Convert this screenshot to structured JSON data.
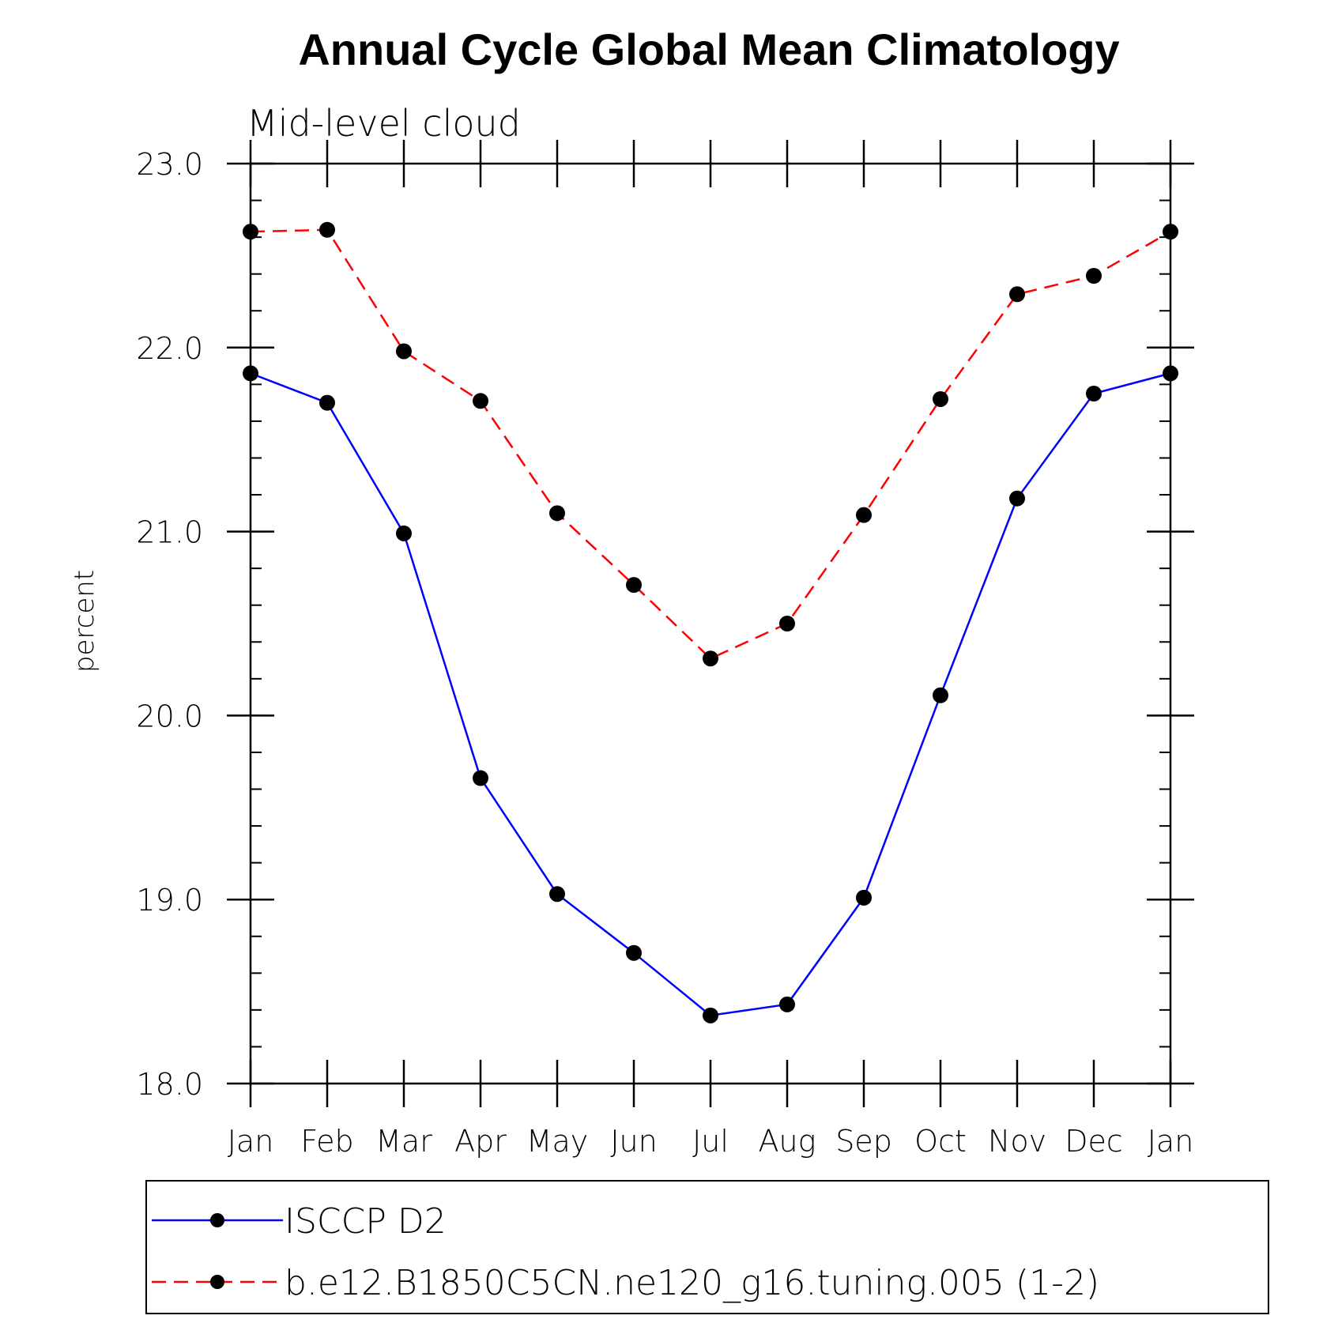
{
  "chart_data": {
    "type": "line",
    "title": "Annual Cycle Global Mean Climatology",
    "subtitle": "Mid-level cloud",
    "xlabel": "",
    "ylabel": "percent",
    "categories": [
      "Jan",
      "Feb",
      "Mar",
      "Apr",
      "May",
      "Jun",
      "Jul",
      "Aug",
      "Sep",
      "Oct",
      "Nov",
      "Dec",
      "Jan"
    ],
    "ylim": [
      18.0,
      23.0
    ],
    "yticks": [
      18.0,
      19.0,
      20.0,
      21.0,
      22.0,
      23.0
    ],
    "ytick_labels": [
      "18.0",
      "19.0",
      "20.0",
      "21.0",
      "22.0",
      "23.0"
    ],
    "y_minor_step": 0.2,
    "grid": false,
    "legend_position": "bottom",
    "series": [
      {
        "name": "ISCCP D2",
        "color": "#0000ff",
        "dash": "solid",
        "marker": "filled-circle",
        "values": [
          21.86,
          21.7,
          20.99,
          19.66,
          19.03,
          18.71,
          18.37,
          18.43,
          19.01,
          20.11,
          21.18,
          21.75,
          21.86
        ]
      },
      {
        "name": "b.e12.B1850C5CN.ne120_g16.tuning.005 (1-2)",
        "color": "#ff0000",
        "dash": "dashed",
        "marker": "filled-circle",
        "values": [
          22.63,
          22.64,
          21.98,
          21.71,
          21.1,
          20.71,
          20.31,
          20.5,
          21.09,
          21.72,
          22.29,
          22.39,
          22.63
        ]
      }
    ]
  }
}
